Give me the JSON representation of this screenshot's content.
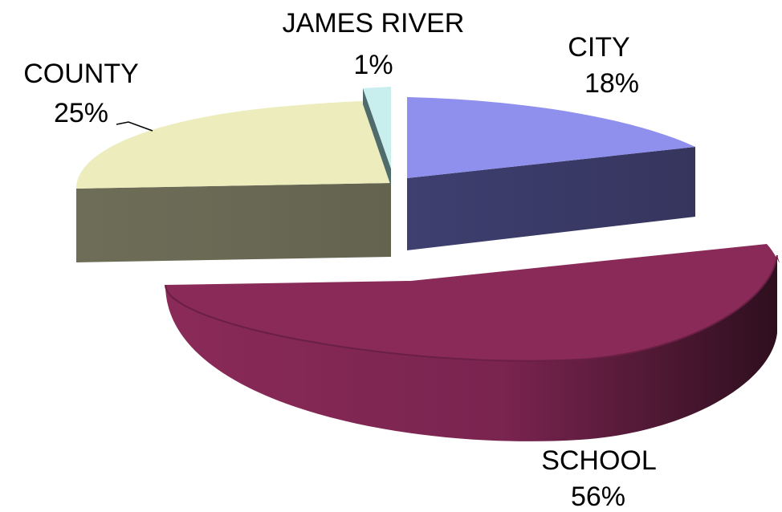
{
  "chart_data": {
    "type": "pie",
    "style": "3d-exploded",
    "title": "",
    "categories": [
      "CITY",
      "SCHOOL",
      "COUNTY",
      "JAMES RIVER"
    ],
    "values": [
      18,
      56,
      25,
      1
    ],
    "labels": [
      {
        "name": "CITY",
        "value": "18%"
      },
      {
        "name": "SCHOOL",
        "value": "56%"
      },
      {
        "name": "COUNTY",
        "value": "25%"
      },
      {
        "name": "JAMES RIVER",
        "value": "1%"
      }
    ],
    "colors": {
      "CITY": {
        "top": "#8f8fee",
        "side": "#3d3d6b"
      },
      "SCHOOL": {
        "top": "#8a2a58",
        "side": "#5c1c3b"
      },
      "COUNTY": {
        "top": "#ececbc",
        "side": "#6b6b55"
      },
      "JAMES RIVER": {
        "top": "#c8eeee",
        "side": "#4f6b6b"
      }
    },
    "legend": "none"
  }
}
